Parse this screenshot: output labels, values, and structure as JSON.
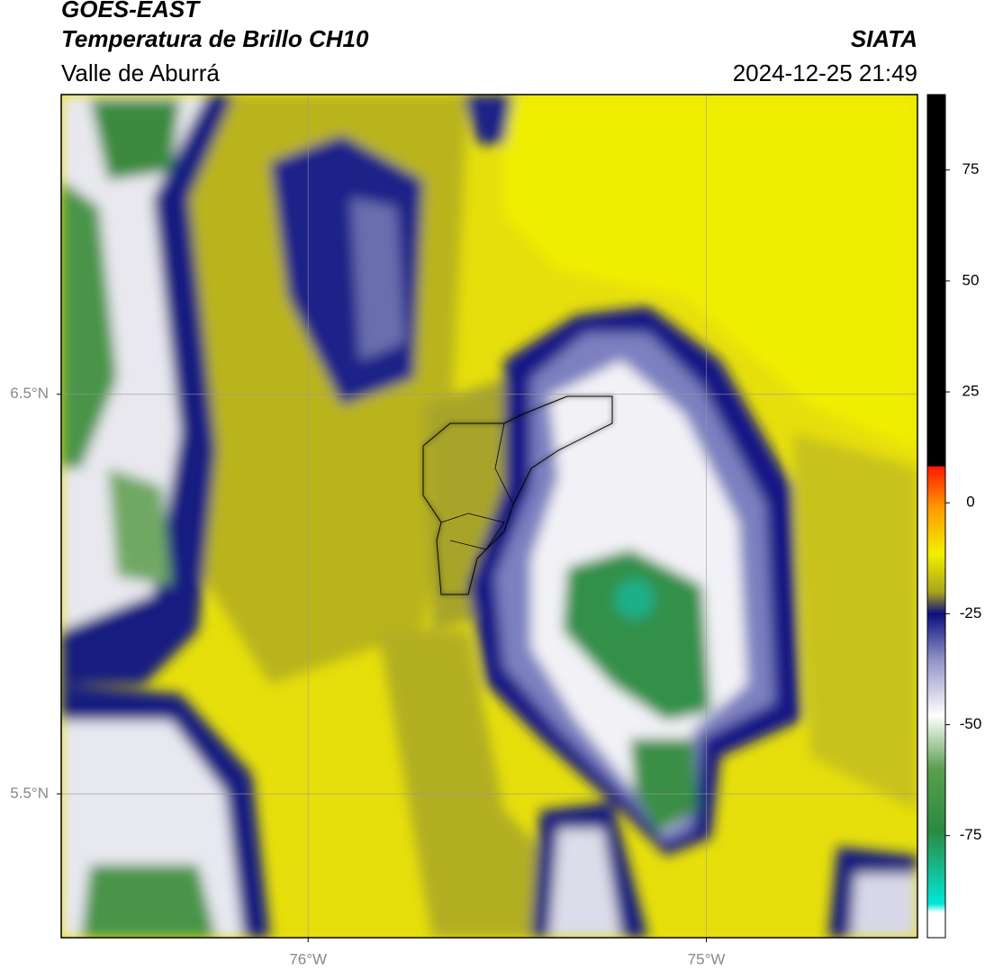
{
  "header": {
    "satellite": "GOES-EAST",
    "product": "Temperatura de Brillo CH10",
    "region": "Valle de Aburrá",
    "agency": "SIATA",
    "datetime": "2024-12-25 21:49"
  },
  "map": {
    "xlim": [
      -76.62,
      -74.47
    ],
    "ylim": [
      5.14,
      7.25
    ],
    "xticks": [
      {
        "value": -76,
        "label": "76°W"
      },
      {
        "value": -75,
        "label": "75°W"
      }
    ],
    "yticks": [
      {
        "value": 6.5,
        "label": "6.5°N"
      },
      {
        "value": 5.5,
        "label": "5.5°N"
      }
    ],
    "grid": true
  },
  "colorbar": {
    "lim": [
      -98,
      92
    ],
    "ticks": [
      75,
      50,
      25,
      0,
      -25,
      -50,
      -75
    ]
  }
}
